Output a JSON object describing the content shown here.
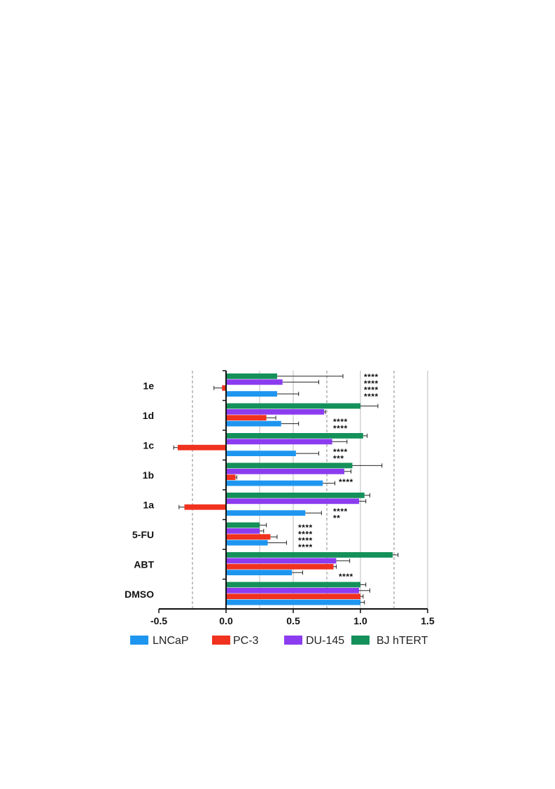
{
  "chart_data": {
    "type": "bar",
    "orientation": "horizontal",
    "categories": [
      "1e",
      "1d",
      "1c",
      "1b",
      "1a",
      "5-FU",
      "ABT",
      "DMSO"
    ],
    "series": [
      {
        "name": "LNCaP",
        "color": "#1e96f0",
        "values": [
          0.38,
          0.41,
          0.52,
          0.72,
          0.59,
          0.31,
          0.49,
          1.0
        ],
        "errors": [
          0.16,
          0.13,
          0.17,
          0.09,
          0.12,
          0.14,
          0.08,
          0.03
        ]
      },
      {
        "name": "PC-3",
        "color": "#f0321e",
        "values": [
          -0.03,
          0.3,
          -0.36,
          0.07,
          -0.31,
          0.33,
          0.8,
          1.0
        ],
        "errors": [
          0.06,
          0.07,
          0.03,
          0.01,
          0.04,
          0.05,
          0.02,
          0.02
        ]
      },
      {
        "name": "DU-145",
        "color": "#8c3cf0",
        "values": [
          0.42,
          0.73,
          0.79,
          0.88,
          0.99,
          0.25,
          0.82,
          0.99
        ],
        "errors": [
          0.27,
          0.01,
          0.11,
          0.05,
          0.05,
          0.03,
          0.1,
          0.08
        ]
      },
      {
        "name": "BJ hTERT",
        "color": "#14915a",
        "values": [
          0.38,
          1.0,
          1.02,
          0.94,
          1.03,
          0.25,
          1.24,
          1.0
        ],
        "errors": [
          0.49,
          0.13,
          0.03,
          0.22,
          0.04,
          0.05,
          0.04,
          0.04
        ]
      }
    ],
    "significance": [
      {
        "category": "1e",
        "labels": [
          "****",
          "****",
          "****",
          "****"
        ]
      },
      {
        "category": "1d",
        "labels": [
          "****",
          "****"
        ]
      },
      {
        "category": "1c",
        "labels": [
          "****",
          "***"
        ]
      },
      {
        "category": "1b",
        "labels": [
          "****"
        ]
      },
      {
        "category": "1a",
        "labels": [
          "****",
          "**"
        ]
      },
      {
        "category": "5-FU",
        "labels": [
          "****",
          "****",
          "****",
          "****"
        ]
      },
      {
        "category": "ABT",
        "labels": [
          "****"
        ]
      },
      {
        "category": "DMSO",
        "labels": []
      }
    ],
    "xlim": [
      -0.5,
      1.5
    ],
    "xticks": [
      "-0.5",
      "0.0",
      "0.5",
      "1.0",
      "1.5"
    ],
    "xtick_values": [
      -0.5,
      0.0,
      0.5,
      1.0,
      1.5
    ],
    "gridlines": {
      "dashed": [
        -0.25,
        0.75,
        1.25
      ],
      "solid": [
        0.25,
        0.5,
        1.0,
        1.5
      ]
    },
    "legend_position": "bottom",
    "title": "",
    "xlabel": "",
    "ylabel": ""
  }
}
